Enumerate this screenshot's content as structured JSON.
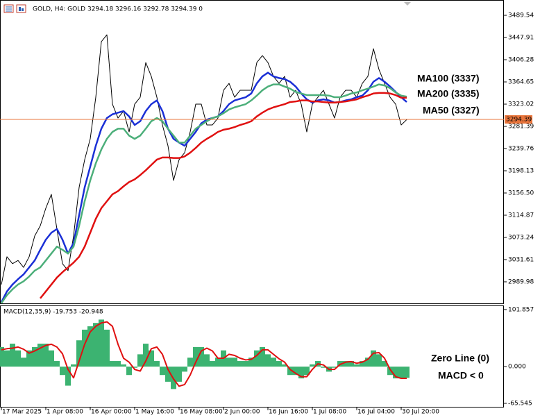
{
  "chart_data": [
    {
      "type": "line",
      "title": "GOLD, H4:  GOLD  3294.18 3296.16 3292.78 3294.39  0",
      "categories": [
        "17 Mar 2025",
        null,
        null,
        null,
        null,
        null,
        null,
        null,
        "1 Apr 08:00",
        null,
        null,
        null,
        null,
        null,
        null,
        null,
        "16 Apr 00:00",
        null,
        null,
        null,
        null,
        null,
        null,
        null,
        "1 May 16:00",
        null,
        null,
        null,
        null,
        null,
        null,
        null,
        "16 May 08:00",
        null,
        null,
        null,
        null,
        null,
        null,
        null,
        "2 Jun 00:00",
        null,
        null,
        null,
        null,
        null,
        null,
        null,
        "16 Jun 16:00",
        null,
        null,
        null,
        null,
        null,
        null,
        null,
        "1 Jul 08:00",
        null,
        null,
        null,
        null,
        null,
        null,
        null,
        "16 Jul 04:00",
        null,
        null,
        null,
        null,
        null,
        null,
        null,
        "30 Jul 20:00",
        null
      ],
      "series": [
        {
          "color": "#000000",
          "width": 1,
          "values": [
            2985,
            3037,
            3024,
            3030,
            3017,
            3037,
            3076,
            3095,
            3128,
            3154,
            3089,
            3024,
            3011,
            3076,
            3167,
            3219,
            3258,
            3336,
            3440,
            3453,
            3323,
            3297,
            3310,
            3271,
            3323,
            3336,
            3401,
            3375,
            3336,
            3284,
            3245,
            3180,
            3219,
            3232,
            3271,
            3323,
            3323,
            3284,
            3284,
            3297,
            3349,
            3362,
            3336,
            3349,
            3349,
            3349,
            3401,
            3414,
            3401,
            3375,
            3362,
            3375,
            3336,
            3349,
            3323,
            3271,
            3323,
            3336,
            3349,
            3323,
            3297,
            3336,
            3349,
            3349,
            3336,
            3362,
            3375,
            3427,
            3388,
            3362,
            3336,
            3323,
            3284,
            3294
          ]
        },
        {
          "color": "#1a2fd6",
          "width": 2.5,
          "values": [
            2952,
            2972,
            2985,
            2995,
            3004,
            3017,
            3030,
            3050,
            3069,
            3082,
            3089,
            3069,
            3043,
            3063,
            3115,
            3167,
            3206,
            3245,
            3277,
            3297,
            3304,
            3307,
            3310,
            3300,
            3284,
            3291,
            3310,
            3323,
            3330,
            3310,
            3277,
            3258,
            3251,
            3245,
            3258,
            3271,
            3287,
            3294,
            3297,
            3300,
            3310,
            3323,
            3330,
            3333,
            3336,
            3343,
            3362,
            3375,
            3382,
            3375,
            3372,
            3370,
            3365,
            3356,
            3343,
            3332,
            3326,
            3330,
            3332,
            3330,
            3326,
            3327,
            3330,
            3332,
            3336,
            3339,
            3349,
            3365,
            3372,
            3365,
            3356,
            3346,
            3336,
            3327
          ]
        },
        {
          "color": "#4caf7a",
          "width": 2.5,
          "values": [
            2950,
            2965,
            2976,
            2985,
            2991,
            3000,
            3011,
            3017,
            3030,
            3043,
            3056,
            3050,
            3043,
            3056,
            3095,
            3141,
            3180,
            3212,
            3238,
            3258,
            3271,
            3277,
            3277,
            3264,
            3258,
            3264,
            3277,
            3291,
            3297,
            3291,
            3277,
            3264,
            3251,
            3251,
            3264,
            3277,
            3284,
            3291,
            3297,
            3300,
            3306,
            3313,
            3317,
            3320,
            3323,
            3330,
            3339,
            3349,
            3356,
            3360,
            3360,
            3356,
            3352,
            3346,
            3343,
            3340,
            3340,
            3340,
            3340,
            3339,
            3336,
            3336,
            3339,
            3343,
            3345,
            3349,
            3352,
            3356,
            3360,
            3358,
            3353,
            3345,
            3339,
            3337
          ]
        },
        {
          "color": "#e01010",
          "width": 2.5,
          "values": [
            null,
            null,
            null,
            null,
            null,
            null,
            null,
            2959,
            2972,
            2985,
            2998,
            3008,
            3017,
            3026,
            3037,
            3056,
            3082,
            3108,
            3128,
            3141,
            3154,
            3160,
            3169,
            3177,
            3182,
            3190,
            3199,
            3209,
            3219,
            3223,
            3223,
            3222,
            3222,
            3225,
            3232,
            3241,
            3251,
            3258,
            3264,
            3271,
            3275,
            3277,
            3280,
            3284,
            3287,
            3291,
            3300,
            3307,
            3313,
            3317,
            3320,
            3323,
            3327,
            3328,
            3330,
            3330,
            3328,
            3328,
            3327,
            3326,
            3326,
            3327,
            3328,
            3330,
            3332,
            3336,
            3339,
            3343,
            3344,
            3344,
            3343,
            3340,
            3335,
            3335
          ]
        }
      ],
      "current_price": 3294.39,
      "current_price_color": "#e8743b",
      "ylim": [
        2949.6,
        3513.0
      ],
      "yticks": [
        3489.54,
        3447.91,
        3406.28,
        3364.65,
        3323.02,
        3281.39,
        3239.76,
        3198.13,
        {
          "value": 3156.5,
          "label": "3156.50"
        },
        3114.87,
        3073.24,
        3031.61,
        2989.98
      ],
      "annotations": [
        {
          "text": "MA100 (3337)",
          "color": "#1a8a1a"
        },
        {
          "text": "MA200 (3335)",
          "color": "#e01010"
        },
        {
          "text": "MA50 (3327)",
          "color": "#1a2fd6"
        }
      ]
    },
    {
      "type": "bar",
      "title": "MACD(12,35,9) -19.753 -20.948",
      "series": [
        {
          "color": "#3cb371",
          "style": "bar",
          "values": [
            35,
            29,
            41,
            29,
            16,
            29,
            35,
            41,
            41,
            29,
            10,
            -15,
            -34,
            4,
            47,
            66,
            72,
            78,
            84,
            66,
            10,
            10,
            4,
            -15,
            -2,
            22,
            41,
            29,
            10,
            -15,
            -27,
            -40,
            -27,
            -9,
            16,
            35,
            35,
            22,
            10,
            16,
            29,
            16,
            16,
            10,
            10,
            16,
            29,
            35,
            22,
            16,
            10,
            4,
            -15,
            -15,
            -21,
            -15,
            4,
            10,
            -2,
            -9,
            -2,
            10,
            10,
            10,
            4,
            10,
            16,
            29,
            22,
            10,
            -15,
            -21,
            -21,
            -20
          ]
        },
        {
          "color": "#e01010",
          "style": "line",
          "values": [
            30,
            32,
            33,
            35,
            31,
            24,
            28,
            33,
            38,
            40,
            35,
            23,
            -5,
            -20,
            10,
            40,
            62,
            72,
            78,
            80,
            72,
            40,
            15,
            8,
            -5,
            -8,
            10,
            32,
            35,
            22,
            -5,
            -22,
            -35,
            -32,
            -15,
            8,
            28,
            33,
            28,
            15,
            15,
            22,
            20,
            15,
            12,
            13,
            20,
            30,
            30,
            22,
            14,
            8,
            -5,
            -12,
            -18,
            -18,
            -5,
            5,
            3,
            -5,
            -5,
            4,
            8,
            9,
            6,
            8,
            13,
            24,
            25,
            15,
            -5,
            -18,
            -21,
            -21
          ]
        }
      ],
      "ylim": [
        -73,
        108
      ],
      "yticks": [
        101.857,
        {
          "value": 0,
          "label": "0.000"
        },
        -65.545
      ],
      "annotations": [
        {
          "text": "Zero Line (0)",
          "color": "#000000"
        },
        {
          "text": "MACD < 0",
          "color": "#e01010"
        }
      ]
    }
  ]
}
